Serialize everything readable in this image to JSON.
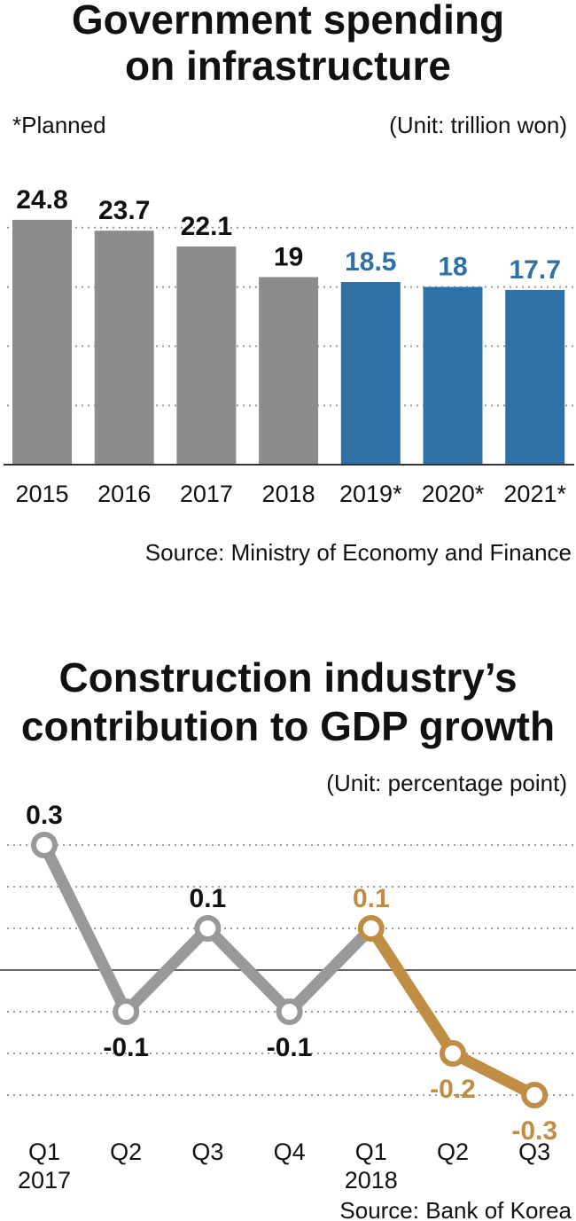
{
  "chart_data": [
    {
      "type": "bar",
      "title": "Government spending on infrastructure",
      "title_lines": [
        "Government spending",
        "on infrastructure"
      ],
      "legend_note": "*Planned",
      "unit": "(Unit: trillion won)",
      "source": "Source: Ministry of Economy and Finance",
      "categories": [
        "2015",
        "2016",
        "2017",
        "2018",
        "2019*",
        "2020*",
        "2021*"
      ],
      "values": [
        24.8,
        23.7,
        22.1,
        19,
        18.5,
        18,
        17.7
      ],
      "value_labels": [
        "24.8",
        "23.7",
        "22.1",
        "19",
        "18.5",
        "18",
        "17.7"
      ],
      "planned": [
        false,
        false,
        false,
        false,
        true,
        true,
        true
      ],
      "ylim": [
        0,
        30
      ],
      "grid": true,
      "colors": {
        "actual": "#8c8c8c",
        "planned": "#2f70a5",
        "actual_label": "#111111",
        "planned_label": "#2f70a5"
      }
    },
    {
      "type": "line",
      "title": "Construction industry’s contribution to GDP growth",
      "title_lines": [
        "Construction industry’s",
        "contribution to GDP growth"
      ],
      "unit": "(Unit: percentage point)",
      "source": "Source: Bank of Korea",
      "categories": [
        [
          "Q1",
          "2017"
        ],
        [
          "Q2",
          ""
        ],
        [
          "Q3",
          ""
        ],
        [
          "Q4",
          ""
        ],
        [
          "Q1",
          "2018"
        ],
        [
          "Q2",
          ""
        ],
        [
          "Q3",
          ""
        ]
      ],
      "values": [
        0.3,
        -0.1,
        0.1,
        -0.1,
        0.1,
        -0.2,
        -0.3
      ],
      "value_labels": [
        "0.3",
        "-0.1",
        "0.1",
        "-0.1",
        "0.1",
        "-0.2",
        "-0.3"
      ],
      "ylim": [
        -0.3,
        0.3
      ],
      "grid": true,
      "highlight_from_index": 4,
      "colors": {
        "base": "#999999",
        "highlight": "#c08d45",
        "zero_line": "#666666"
      }
    }
  ]
}
